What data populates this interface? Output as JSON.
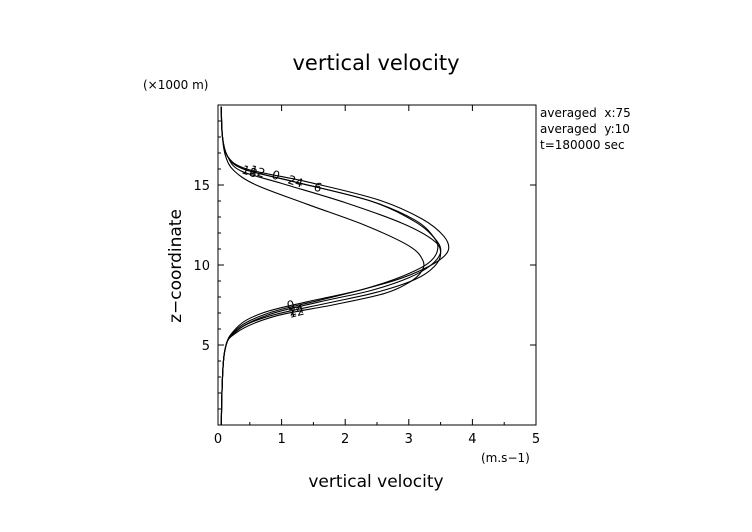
{
  "chart_data": {
    "type": "line",
    "title": "vertical velocity",
    "xlabel": "vertical velocity",
    "ylabel": "z−coordinate",
    "x_unit": "(m.s−1)",
    "y_unit": "(×1000 m)",
    "xlim": [
      0,
      5
    ],
    "ylim": [
      0,
      20
    ],
    "x_ticks": [
      "0",
      "1",
      "2",
      "3",
      "4",
      "5"
    ],
    "y_ticks": [
      "5",
      "10",
      "15"
    ],
    "info_lines": [
      "averaged  x:75",
      "averaged  y:10",
      "t=180000 sec"
    ],
    "contour_labels_upper": [
      "18",
      "12",
      "0",
      "24",
      "6"
    ],
    "contour_labels_lower": [
      "0",
      "24",
      "12"
    ],
    "series": [
      {
        "label": "0",
        "x": [
          0.05,
          0.1,
          0.3,
          0.8,
          1.6,
          2.3,
          2.9,
          3.3,
          3.45,
          3.4,
          3.1,
          2.4,
          1.2,
          0.4,
          0.15,
          0.07,
          0.05
        ],
        "y": [
          0,
          4.5,
          6.0,
          7.0,
          7.8,
          8.5,
          9.3,
          10.1,
          10.9,
          11.7,
          12.8,
          14.0,
          15.2,
          16.0,
          16.8,
          18.0,
          19.9
        ]
      },
      {
        "label": "6",
        "x": [
          0.05,
          0.1,
          0.3,
          0.7,
          1.4,
          2.2,
          2.9,
          3.4,
          3.62,
          3.55,
          3.2,
          2.5,
          1.4,
          0.45,
          0.15,
          0.07,
          0.05
        ],
        "y": [
          0,
          4.5,
          6.1,
          7.0,
          7.7,
          8.4,
          9.2,
          10.1,
          10.9,
          11.8,
          12.9,
          14.1,
          15.2,
          16.0,
          16.8,
          18.0,
          19.9
        ]
      },
      {
        "label": "12",
        "x": [
          0.05,
          0.1,
          0.3,
          0.8,
          1.6,
          2.4,
          3.0,
          3.35,
          3.5,
          3.42,
          3.1,
          2.4,
          1.2,
          0.4,
          0.15,
          0.07,
          0.05
        ],
        "y": [
          0,
          4.5,
          5.9,
          6.9,
          7.7,
          8.4,
          9.2,
          10.0,
          10.8,
          11.6,
          12.7,
          14.0,
          15.2,
          16.0,
          16.8,
          18.0,
          19.9
        ]
      },
      {
        "label": "18",
        "x": [
          0.05,
          0.1,
          0.3,
          0.8,
          1.7,
          2.5,
          3.1,
          3.4,
          3.5,
          3.4,
          2.9,
          2.0,
          1.0,
          0.35,
          0.15,
          0.07,
          0.05
        ],
        "y": [
          0,
          4.5,
          5.9,
          6.8,
          7.6,
          8.3,
          9.1,
          9.9,
          10.7,
          11.5,
          12.6,
          13.9,
          15.1,
          15.9,
          16.8,
          18.0,
          19.9
        ]
      },
      {
        "label": "24",
        "x": [
          0.05,
          0.1,
          0.3,
          0.9,
          1.8,
          2.6,
          3.0,
          3.2,
          3.22,
          3.0,
          2.3,
          1.4,
          0.6,
          0.25,
          0.12,
          0.07,
          0.05
        ],
        "y": [
          0,
          4.5,
          5.8,
          6.8,
          7.5,
          8.2,
          8.9,
          9.6,
          10.3,
          11.2,
          12.5,
          13.8,
          15.0,
          15.9,
          16.8,
          18.0,
          19.9
        ]
      }
    ]
  }
}
